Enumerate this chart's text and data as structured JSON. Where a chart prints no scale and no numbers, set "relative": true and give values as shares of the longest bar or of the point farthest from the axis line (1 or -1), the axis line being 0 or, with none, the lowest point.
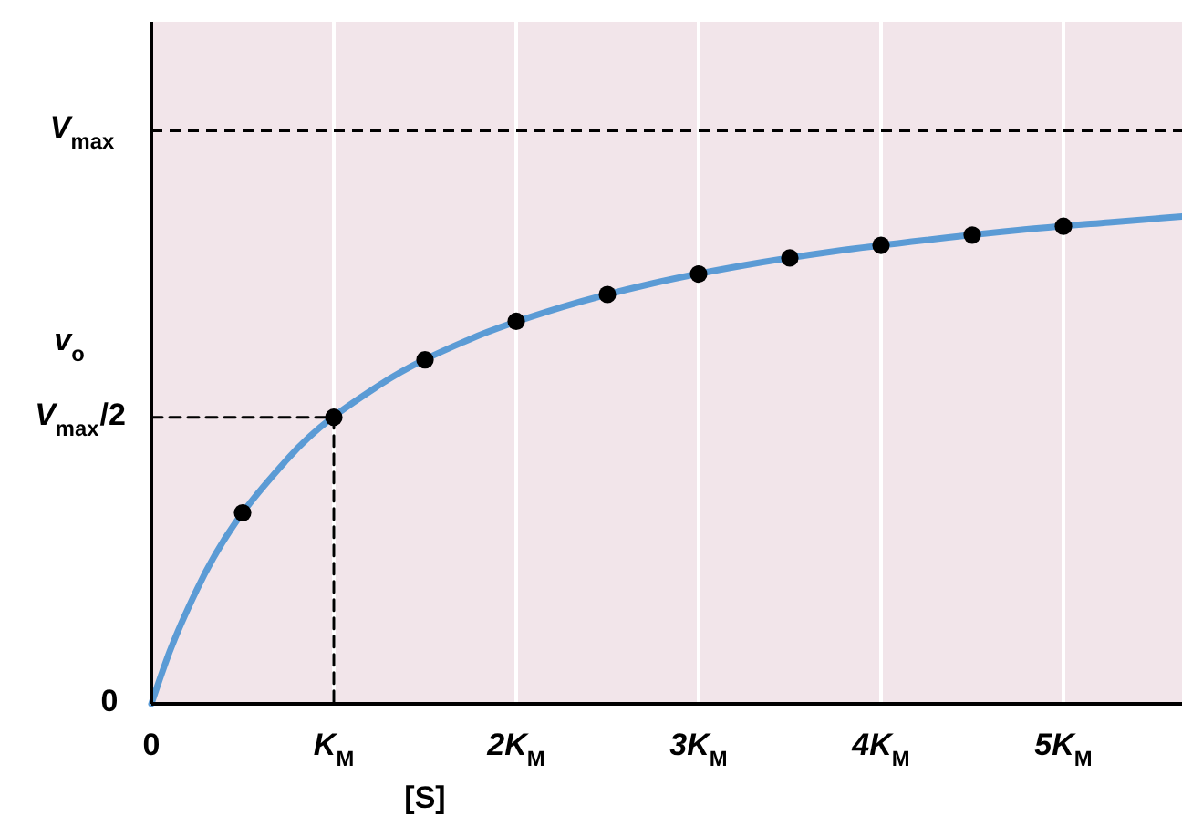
{
  "chart_data": {
    "type": "line",
    "relative": true,
    "xlabel": "[S]",
    "ylabel": "v$_{o}$",
    "xlim": [
      0,
      5.65
    ],
    "xticks": [
      0,
      {
        "value": 1,
        "label": "K$_{M}$"
      },
      {
        "value": 2,
        "label": "2K$_{M}$"
      },
      {
        "value": 3,
        "label": "3K$_{M}$"
      },
      {
        "value": 4,
        "label": "4K$_{M}$"
      },
      {
        "value": 5,
        "label": "5K$_{M}$"
      }
    ],
    "grid": "x",
    "legend": false,
    "ref_lines": [
      {
        "axis": "y",
        "value": 1.176,
        "label": "V$_{max}$",
        "color": "#000000",
        "line_style": "dashed"
      }
    ],
    "annotations": [
      "0",
      "V$_{max}$/2"
    ],
    "series": [
      {
        "color": "#5b9bd5",
        "marker": "none",
        "line_style": "solid",
        "x": [
          0,
          0.1,
          0.25,
          0.75,
          1.25,
          1.75,
          2.25,
          2.75,
          3.25,
          3.75,
          4.25,
          4.75,
          5.25,
          5.65
        ],
        "values": [
          0,
          0.107,
          0.235,
          0.504,
          0.654,
          0.749,
          0.814,
          0.863,
          0.9,
          0.929,
          0.952,
          0.972,
          0.988,
          1
        ]
      },
      {
        "type": "scatter",
        "color": "#000000",
        "marker": "circle",
        "x": [
          0.5,
          1,
          1.5,
          2,
          2.5,
          3,
          3.5,
          4,
          4.5,
          5
        ],
        "values": [
          0.392,
          0.588,
          0.706,
          0.785,
          0.84,
          0.882,
          0.915,
          0.941,
          0.962,
          0.98
        ]
      },
      {
        "type": "line",
        "color": "#000000",
        "marker": "none",
        "line_style": "dashed",
        "x": [
          0,
          1,
          1
        ],
        "values": [
          0.588,
          0.588,
          0
        ]
      }
    ]
  }
}
